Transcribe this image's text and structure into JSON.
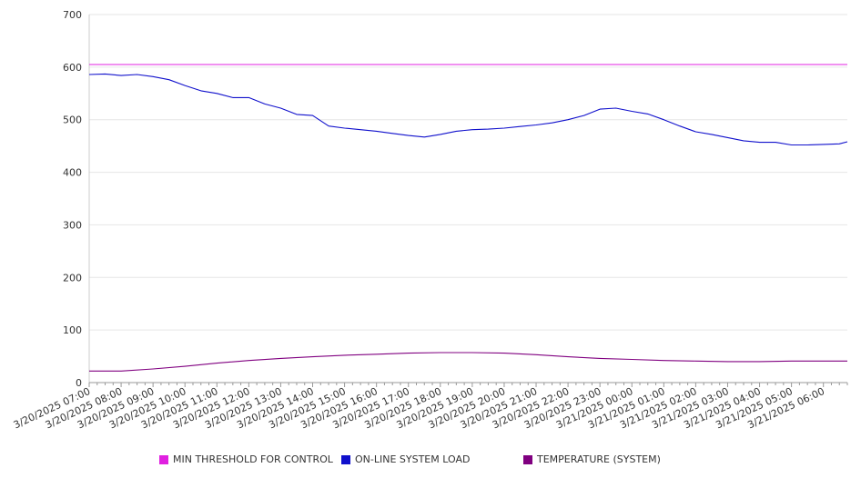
{
  "chart_data": {
    "type": "line",
    "title": "",
    "xlabel": "",
    "ylabel": "",
    "ylim": [
      0,
      700
    ],
    "yticks": [
      0,
      100,
      200,
      300,
      400,
      500,
      600,
      700
    ],
    "xlim": [
      "3/20/2025 07:00",
      "3/21/2025 06:45"
    ],
    "x_tick_labels": [
      "3/20/2025 07:00",
      "3/20/2025 08:00",
      "3/20/2025 09:00",
      "3/20/2025 10:00",
      "3/20/2025 11:00",
      "3/20/2025 12:00",
      "3/20/2025 13:00",
      "3/20/2025 14:00",
      "3/20/2025 15:00",
      "3/20/2025 16:00",
      "3/20/2025 17:00",
      "3/20/2025 18:00",
      "3/20/2025 19:00",
      "3/20/2025 20:00",
      "3/20/2025 21:00",
      "3/20/2025 22:00",
      "3/20/2025 23:00",
      "3/21/2025 00:00",
      "3/21/2025 01:00",
      "3/21/2025 02:00",
      "3/21/2025 03:00",
      "3/21/2025 04:00",
      "3/21/2025 05:00",
      "3/21/2025 06:00"
    ],
    "grid": true,
    "legend_position": "bottom",
    "series": [
      {
        "name": "MIN THRESHOLD FOR CONTROL",
        "color": "#e020e0",
        "x": [
          "3/20/2025 07:00",
          "3/21/2025 06:45"
        ],
        "values": [
          605,
          605
        ]
      },
      {
        "name": "ON-LINE SYSTEM LOAD",
        "color": "#1010cc",
        "x": [
          "3/20/2025 07:00",
          "3/20/2025 07:30",
          "3/20/2025 08:00",
          "3/20/2025 08:30",
          "3/20/2025 09:00",
          "3/20/2025 09:30",
          "3/20/2025 10:00",
          "3/20/2025 10:30",
          "3/20/2025 11:00",
          "3/20/2025 11:30",
          "3/20/2025 12:00",
          "3/20/2025 12:30",
          "3/20/2025 13:00",
          "3/20/2025 13:30",
          "3/20/2025 14:00",
          "3/20/2025 14:30",
          "3/20/2025 15:00",
          "3/20/2025 15:30",
          "3/20/2025 16:00",
          "3/20/2025 16:30",
          "3/20/2025 17:00",
          "3/20/2025 17:30",
          "3/20/2025 18:00",
          "3/20/2025 18:30",
          "3/20/2025 19:00",
          "3/20/2025 19:30",
          "3/20/2025 20:00",
          "3/20/2025 20:30",
          "3/20/2025 21:00",
          "3/20/2025 21:30",
          "3/20/2025 22:00",
          "3/20/2025 22:30",
          "3/20/2025 23:00",
          "3/20/2025 23:30",
          "3/21/2025 00:00",
          "3/21/2025 00:30",
          "3/21/2025 01:00",
          "3/21/2025 01:30",
          "3/21/2025 02:00",
          "3/21/2025 02:30",
          "3/21/2025 03:00",
          "3/21/2025 03:30",
          "3/21/2025 04:00",
          "3/21/2025 04:30",
          "3/21/2025 05:00",
          "3/21/2025 05:30",
          "3/21/2025 06:00",
          "3/21/2025 06:30",
          "3/21/2025 06:45"
        ],
        "values": [
          586,
          587,
          584,
          586,
          582,
          576,
          565,
          555,
          550,
          542,
          542,
          530,
          522,
          510,
          508,
          488,
          484,
          481,
          478,
          474,
          470,
          467,
          472,
          478,
          481,
          482,
          484,
          487,
          490,
          494,
          500,
          508,
          520,
          522,
          516,
          511,
          500,
          488,
          477,
          472,
          466,
          460,
          457,
          457,
          452,
          452,
          453,
          454,
          458
        ]
      },
      {
        "name": "TEMPERATURE (SYSTEM)",
        "color": "#800080",
        "x": [
          "3/20/2025 07:00",
          "3/20/2025 08:00",
          "3/20/2025 09:00",
          "3/20/2025 10:00",
          "3/20/2025 11:00",
          "3/20/2025 12:00",
          "3/20/2025 13:00",
          "3/20/2025 14:00",
          "3/20/2025 15:00",
          "3/20/2025 16:00",
          "3/20/2025 17:00",
          "3/20/2025 18:00",
          "3/20/2025 19:00",
          "3/20/2025 20:00",
          "3/20/2025 21:00",
          "3/20/2025 22:00",
          "3/20/2025 23:00",
          "3/21/2025 00:00",
          "3/21/2025 01:00",
          "3/21/2025 02:00",
          "3/21/2025 03:00",
          "3/21/2025 04:00",
          "3/21/2025 05:00",
          "3/21/2025 06:00",
          "3/21/2025 06:45"
        ],
        "values": [
          22,
          22,
          26,
          31,
          37,
          42,
          46,
          49,
          52,
          54,
          56,
          57,
          57,
          56,
          53,
          49,
          46,
          44,
          42,
          41,
          40,
          40,
          41,
          41,
          41
        ]
      }
    ]
  }
}
